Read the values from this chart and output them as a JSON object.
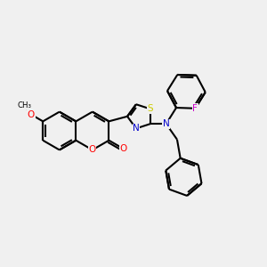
{
  "background_color": "#f0f0f0",
  "bond_color": "#000000",
  "bond_width": 1.5,
  "atom_colors": {
    "O": "#ff0000",
    "N": "#0000cc",
    "S": "#cccc00",
    "F": "#cc00cc",
    "C": "#000000"
  },
  "font_size": 7.5,
  "fig_width": 3.0,
  "fig_height": 3.0,
  "dpi": 100
}
